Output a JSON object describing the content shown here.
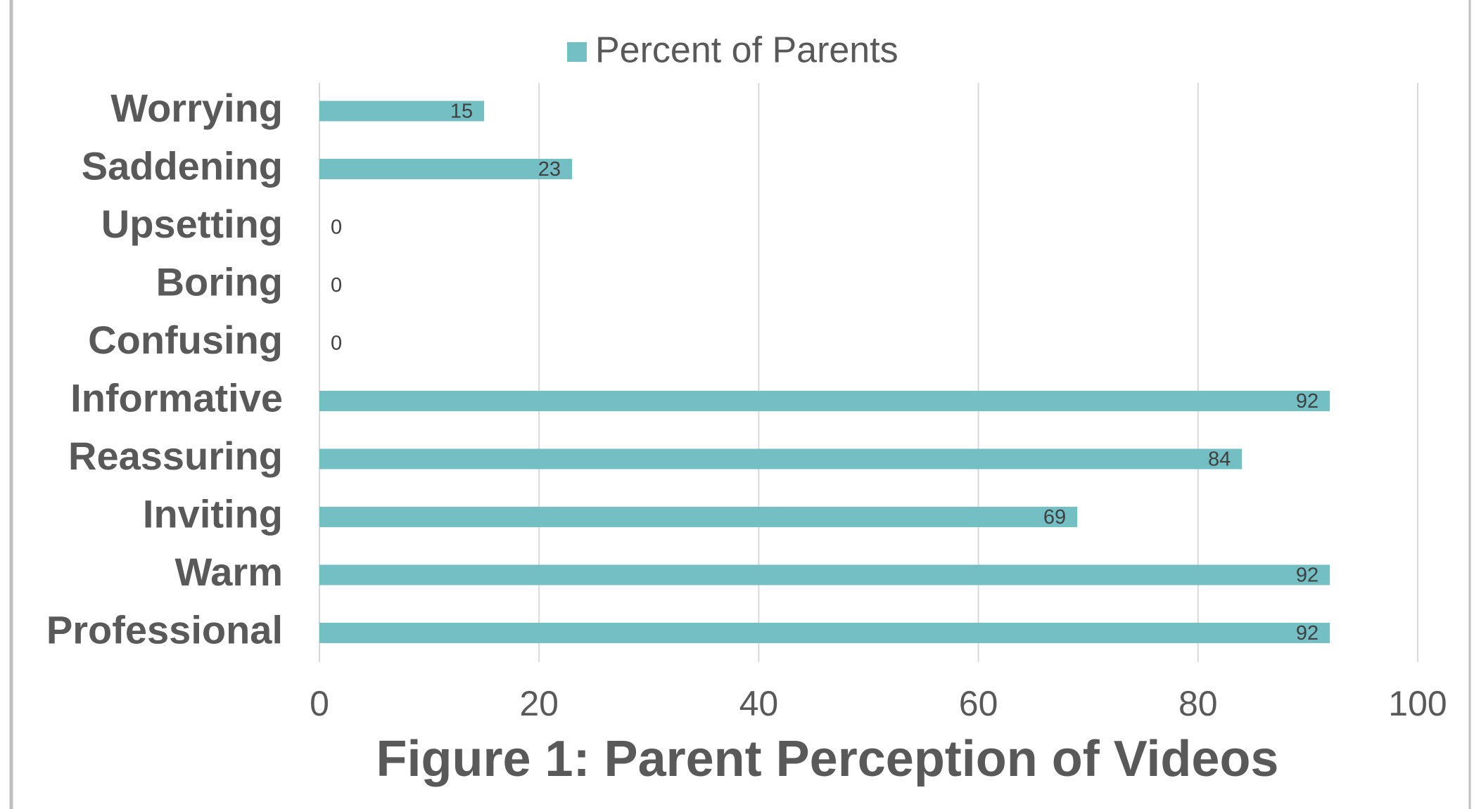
{
  "chart_data": {
    "type": "bar",
    "orientation": "horizontal",
    "title": "Figure 1: Parent Perception of Videos",
    "categories": [
      "Worrying",
      "Saddening",
      "Upsetting",
      "Boring",
      "Confusing",
      "Informative",
      "Reassuring",
      "Inviting",
      "Warm",
      "Professional"
    ],
    "series": [
      {
        "name": "Percent of Parents",
        "color": "#73bfc4",
        "values": [
          15,
          23,
          0,
          0,
          0,
          92,
          84,
          69,
          92,
          92
        ]
      }
    ],
    "xlim": [
      0,
      100
    ],
    "xticks": [
      0,
      20,
      40,
      60,
      80,
      100
    ],
    "grid": true,
    "legend": "top"
  }
}
